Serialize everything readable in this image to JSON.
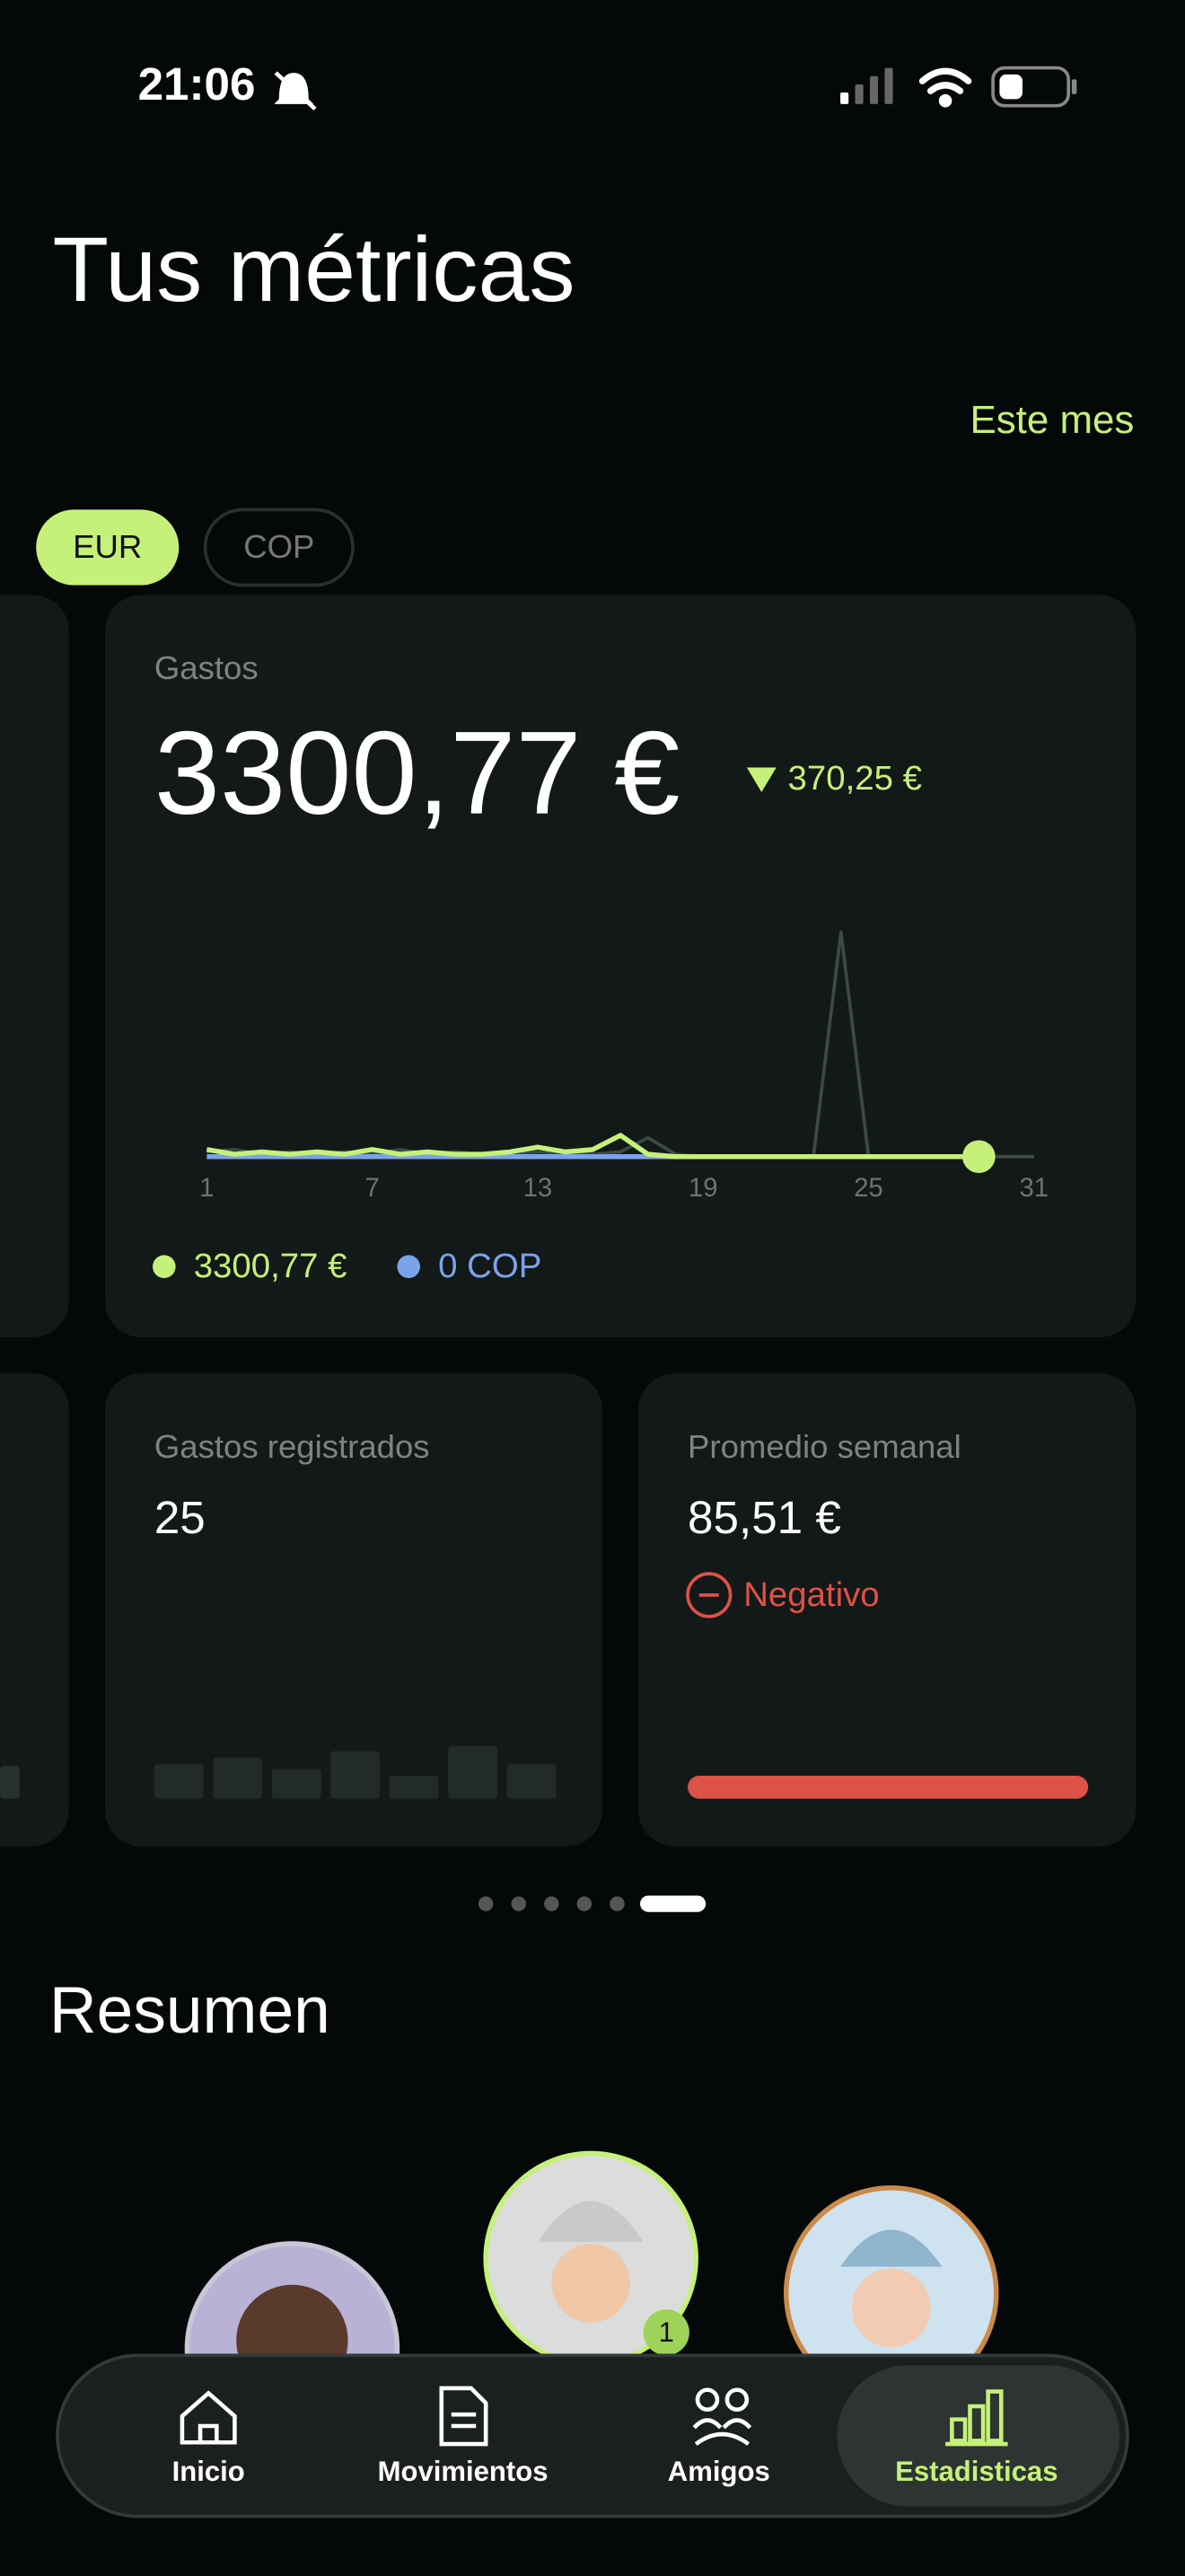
{
  "status_bar": {
    "time": "21:06"
  },
  "header": {
    "title": "Tus métricas",
    "period": "Este mes"
  },
  "currency_tabs": [
    "EUR",
    "COP"
  ],
  "spending_card": {
    "label": "Gastos",
    "amount": "3300,77 €",
    "change": "370,25 €",
    "chart": {
      "type": "line",
      "x": [
        1,
        2,
        3,
        4,
        5,
        6,
        7,
        8,
        9,
        10,
        11,
        12,
        13,
        14,
        15,
        16,
        17,
        18,
        19,
        20,
        21,
        22,
        23,
        24,
        25,
        26,
        27,
        28,
        29,
        30,
        31
      ],
      "xlim": [
        1,
        31
      ],
      "xticks": [
        1,
        7,
        13,
        19,
        25,
        31
      ],
      "ylim": [
        0,
        100
      ],
      "series": [
        {
          "color": "#3a4a44",
          "values": [
            2,
            3,
            1,
            2,
            1,
            2,
            1,
            3,
            1,
            2,
            1,
            1,
            2,
            1,
            1,
            2,
            8,
            1,
            0,
            0,
            0,
            0,
            0,
            95,
            0,
            0,
            0,
            0,
            0,
            0,
            0
          ]
        },
        {
          "name": "0 COP",
          "color": "#7aa4ea",
          "values": [
            0,
            0,
            0,
            0,
            0,
            0,
            0,
            0,
            0,
            0,
            0,
            0,
            0,
            0,
            0,
            0,
            0,
            0,
            0,
            0,
            0,
            0,
            0,
            0,
            0,
            0,
            0,
            0,
            0,
            null,
            null
          ]
        },
        {
          "name": "3300,77 €",
          "color": "#c5f07a",
          "values": [
            3,
            1,
            2,
            1,
            2,
            1,
            3,
            1,
            2,
            1,
            1,
            2,
            4,
            2,
            3,
            9,
            1,
            0,
            0,
            0,
            0,
            0,
            0,
            0,
            0,
            0,
            0,
            0,
            0,
            null,
            null
          ]
        }
      ]
    }
  },
  "registered_card": {
    "label": "Gastos registrados",
    "count": 25,
    "chart": {
      "type": "bar",
      "values": [
        21,
        25,
        18,
        29,
        14,
        32,
        21
      ],
      "ylim": [
        0,
        32
      ]
    }
  },
  "weekly_card": {
    "label": "Promedio semanal",
    "amount": "85,51 €",
    "status": "Negativo"
  },
  "summary": {
    "title": "Resumen",
    "badge": "1"
  },
  "nav": {
    "items": [
      "Inicio",
      "Movimientos",
      "Amigos",
      "Estadisticas"
    ]
  }
}
